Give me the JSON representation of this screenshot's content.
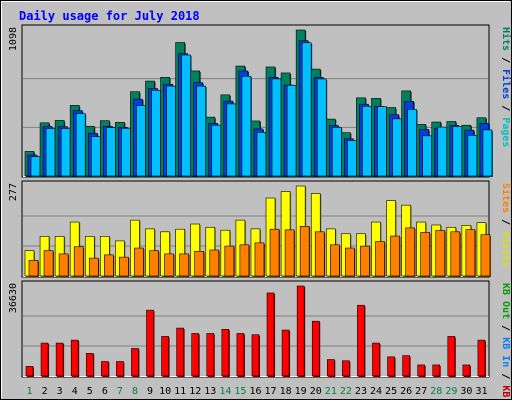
{
  "chart_data": {
    "type": "bar",
    "title": "Daily usage for July 2018",
    "days": [
      "1",
      "2",
      "3",
      "4",
      "5",
      "6",
      "7",
      "8",
      "9",
      "10",
      "11",
      "12",
      "13",
      "14",
      "15",
      "16",
      "17",
      "18",
      "19",
      "20",
      "21",
      "22",
      "23",
      "24",
      "25",
      "26",
      "27",
      "28",
      "29",
      "30",
      "31"
    ],
    "weekend_days": [
      "1",
      "7",
      "8",
      "14",
      "15",
      "21",
      "22",
      "28",
      "29"
    ],
    "panels": [
      {
        "id": "requests",
        "max_label": "1098",
        "max_value": 1098,
        "right_labels": [
          {
            "text": "Pages",
            "color": "#00c0c0"
          },
          {
            "text": "Files",
            "color": "#0040e0"
          },
          {
            "text": "Hits",
            "color": "#008060"
          }
        ],
        "series": [
          {
            "name": "Hits",
            "color": "#008060",
            "values": [
              185,
              400,
              418,
              531,
              374,
              416,
              404,
              634,
              714,
              742,
              1004,
              790,
              443,
              610,
              827,
              414,
              820,
              775,
              1098,
              804,
              428,
              326,
              588,
              584,
              515,
              640,
              388,
              406,
              410,
              382,
              438
            ]
          },
          {
            "name": "Files",
            "color": "#0040e0",
            "values": [
              158,
              372,
              372,
              492,
              322,
              374,
              366,
              578,
              658,
              690,
              920,
              702,
              395,
              563,
              790,
              354,
              742,
              684,
              1018,
              742,
              380,
              280,
              540,
              523,
              462,
              562,
              350,
              360,
              380,
              345,
              396
            ]
          },
          {
            "name": "Pages",
            "color": "#00c0ff",
            "values": [
              145,
              357,
              357,
              470,
              296,
              364,
              358,
              530,
              644,
              676,
              910,
              676,
              382,
              542,
              750,
              328,
              730,
              682,
              1002,
              730,
              366,
              266,
              524,
              522,
              430,
              500,
              302,
              368,
              372,
              306,
              347
            ]
          }
        ]
      },
      {
        "id": "visits",
        "max_label": "277",
        "max_value": 277,
        "right_labels": [
          {
            "text": "Visits",
            "color": "#e0e000"
          },
          {
            "text": "Sites",
            "color": "#ff8000"
          }
        ],
        "series": [
          {
            "name": "Visits",
            "color": "#ffff00",
            "values": [
              78,
              122,
              122,
              166,
              122,
              122,
              108,
              172,
              145,
              136,
              144,
              160,
              150,
              141,
              172,
              145,
              240,
              260,
              277,
              254,
              145,
              130,
              130,
              166,
              232,
              218,
              166,
              157,
              150,
              156,
              164
            ]
          },
          {
            "name": "Sites",
            "color": "#ff8000",
            "values": [
              48,
              78,
              68,
              90,
              55,
              65,
              58,
              86,
              78,
              68,
              68,
              76,
              80,
              92,
              96,
              102,
              144,
              142,
              153,
              136,
              96,
              86,
              92,
              106,
              123,
              148,
              134,
              140,
              136,
              143,
              127
            ]
          }
        ]
      },
      {
        "id": "kbytes",
        "max_label": "36630",
        "max_value": 36630,
        "right_labels": [
          {
            "text": "KB F",
            "color": "#c00000"
          },
          {
            "text": "KB In",
            "color": "#0080ff"
          },
          {
            "text": "KB Out",
            "color": "#00a000"
          }
        ],
        "series": [
          {
            "name": "KB F",
            "color": "#ff0000",
            "values": [
              3900,
              13400,
              13400,
              14600,
              9200,
              5900,
              5900,
              11200,
              26800,
              16100,
              19500,
              17300,
              17300,
              19000,
              17300,
              16800,
              33800,
              18700,
              36630,
              22300,
              6700,
              6200,
              28800,
              13400,
              7800,
              8300,
              4500,
              4500,
              16100,
              4500,
              14600
            ]
          }
        ]
      }
    ]
  }
}
